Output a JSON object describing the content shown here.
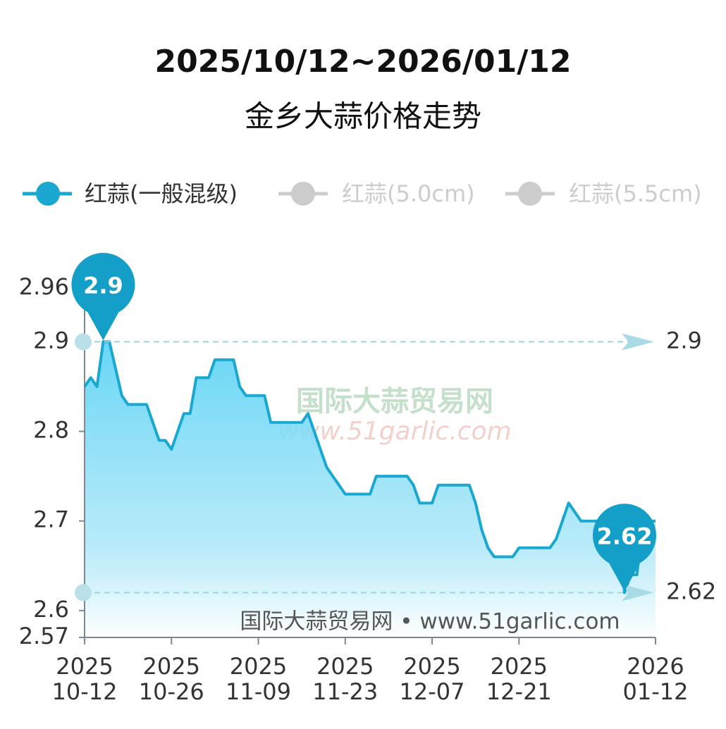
{
  "chart_data": {
    "type": "line",
    "title": "2025/10/12~2026/01/12",
    "subtitle": "金乡大蒜价格走势",
    "x": [
      "2025-10-12",
      "2025-10-13",
      "2025-10-14",
      "2025-10-15",
      "2025-10-16",
      "2025-10-17",
      "2025-10-18",
      "2025-10-19",
      "2025-10-20",
      "2025-10-21",
      "2025-10-22",
      "2025-10-23",
      "2025-10-24",
      "2025-10-25",
      "2025-10-26",
      "2025-10-27",
      "2025-10-28",
      "2025-10-29",
      "2025-10-30",
      "2025-10-31",
      "2025-11-01",
      "2025-11-02",
      "2025-11-03",
      "2025-11-04",
      "2025-11-05",
      "2025-11-06",
      "2025-11-07",
      "2025-11-08",
      "2025-11-09",
      "2025-11-10",
      "2025-11-11",
      "2025-11-12",
      "2025-11-13",
      "2025-11-14",
      "2025-11-15",
      "2025-11-16",
      "2025-11-17",
      "2025-11-18",
      "2025-11-19",
      "2025-11-20",
      "2025-11-21",
      "2025-11-22",
      "2025-11-23",
      "2025-11-24",
      "2025-11-25",
      "2025-11-26",
      "2025-11-27",
      "2025-11-28",
      "2025-11-29",
      "2025-11-30",
      "2025-12-01",
      "2025-12-02",
      "2025-12-03",
      "2025-12-04",
      "2025-12-05",
      "2025-12-06",
      "2025-12-07",
      "2025-12-08",
      "2025-12-09",
      "2025-12-10",
      "2025-12-11",
      "2025-12-12",
      "2025-12-13",
      "2025-12-14",
      "2025-12-15",
      "2025-12-16",
      "2025-12-17",
      "2025-12-18",
      "2025-12-19",
      "2025-12-20",
      "2025-12-21",
      "2025-12-22",
      "2025-12-23",
      "2025-12-24",
      "2025-12-25",
      "2025-12-26",
      "2025-12-27",
      "2025-12-28",
      "2025-12-29",
      "2025-12-30",
      "2025-12-31",
      "2026-01-01",
      "2026-01-02",
      "2026-01-03",
      "2026-01-04",
      "2026-01-05",
      "2026-01-06",
      "2026-01-07",
      "2026-01-08",
      "2026-01-09",
      "2026-01-10",
      "2026-01-11",
      "2026-01-12"
    ],
    "series": [
      {
        "name": "红蒜(一般混级)",
        "color": "#1aa7d0",
        "values": [
          2.85,
          2.86,
          2.85,
          2.9,
          2.9,
          2.87,
          2.84,
          2.83,
          2.83,
          2.83,
          2.83,
          2.81,
          2.79,
          2.79,
          2.78,
          2.8,
          2.82,
          2.82,
          2.86,
          2.86,
          2.86,
          2.88,
          2.88,
          2.88,
          2.88,
          2.85,
          2.84,
          2.84,
          2.84,
          2.84,
          2.81,
          2.81,
          2.81,
          2.81,
          2.81,
          2.81,
          2.82,
          2.8,
          2.78,
          2.76,
          2.75,
          2.74,
          2.73,
          2.73,
          2.73,
          2.73,
          2.73,
          2.75,
          2.75,
          2.75,
          2.75,
          2.75,
          2.75,
          2.74,
          2.72,
          2.72,
          2.72,
          2.74,
          2.74,
          2.74,
          2.74,
          2.74,
          2.74,
          2.72,
          2.69,
          2.67,
          2.66,
          2.66,
          2.66,
          2.66,
          2.67,
          2.67,
          2.67,
          2.67,
          2.67,
          2.67,
          2.68,
          2.7,
          2.72,
          2.71,
          2.7,
          2.7,
          2.7,
          2.7,
          2.7,
          2.7,
          2.7,
          2.62,
          2.64,
          2.64,
          2.7,
          2.7,
          2.7
        ]
      }
    ],
    "legend_inactive": [
      {
        "name": "红蒜(5.0cm)",
        "color": "#cccccc"
      },
      {
        "name": "红蒜(5.5cm)",
        "color": "#cccccc"
      }
    ],
    "max_value": 2.9,
    "min_value": 2.62,
    "xlim": [
      "2025-10-12",
      "2026-01-12"
    ],
    "xticks": [
      {
        "value": "2025-10-12",
        "label": "2025\n10-12"
      },
      {
        "value": "2025-10-26",
        "label": "2025\n10-26"
      },
      {
        "value": "2025-11-09",
        "label": "2025\n11-09"
      },
      {
        "value": "2025-11-23",
        "label": "2025\n11-23"
      },
      {
        "value": "2025-12-07",
        "label": "2025\n12-07"
      },
      {
        "value": "2025-12-21",
        "label": "2025\n12-21"
      },
      {
        "value": "2026-01-12",
        "label": "2026\n01-12"
      }
    ],
    "ylim": [
      2.57,
      2.96
    ],
    "yticks": [
      2.57,
      2.6,
      2.7,
      2.8,
      2.9,
      2.96
    ],
    "watermark": {
      "name": "国际大蒜贸易网",
      "url": "www.51garlic.com"
    },
    "source": "国际大蒜贸易网 • www.51garlic.com"
  }
}
